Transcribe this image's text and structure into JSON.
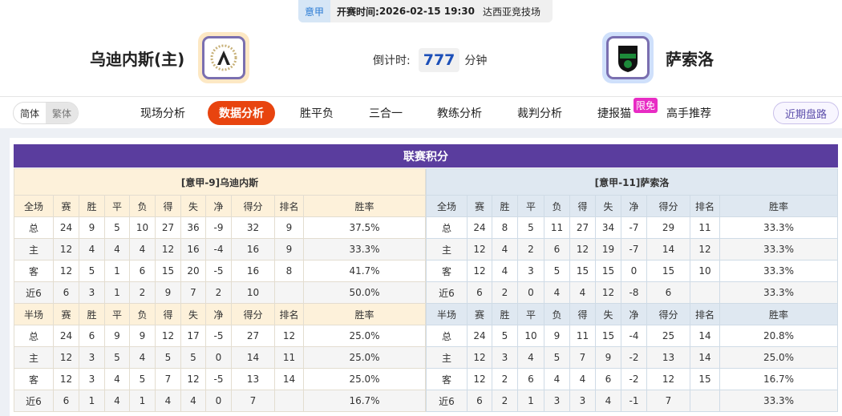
{
  "header": {
    "league": "意甲",
    "kickoff_label": "开赛时间:",
    "kickoff_time": "2026-02-15 19:30",
    "venue": "达西亚竞技场",
    "home_team": "乌迪内斯(主)",
    "away_team": "萨索洛",
    "countdown_label": "倒计时:",
    "countdown_value": "777",
    "countdown_unit": "分钟"
  },
  "lang": {
    "simplified": "简体",
    "traditional": "繁体"
  },
  "nav": {
    "items": [
      "现场分析",
      "数据分析",
      "胜平负",
      "三合一",
      "教练分析",
      "裁判分析",
      "捷报猫",
      "高手推荐"
    ],
    "active": "数据分析",
    "badge": "限免",
    "recent_button": "近期盘路"
  },
  "standings": {
    "title": "联赛积分",
    "columns_full": [
      "全场",
      "赛",
      "胜",
      "平",
      "负",
      "得",
      "失",
      "净",
      "得分",
      "排名",
      "胜率"
    ],
    "columns_half": [
      "半场",
      "赛",
      "胜",
      "平",
      "负",
      "得",
      "失",
      "净",
      "得分",
      "排名",
      "胜率"
    ],
    "home": {
      "title": "[意甲-9]乌迪内斯",
      "full": [
        [
          "总",
          "24",
          "9",
          "5",
          "10",
          "27",
          "36",
          "-9",
          "32",
          "9",
          "37.5%"
        ],
        [
          "主",
          "12",
          "4",
          "4",
          "4",
          "12",
          "16",
          "-4",
          "16",
          "9",
          "33.3%"
        ],
        [
          "客",
          "12",
          "5",
          "1",
          "6",
          "15",
          "20",
          "-5",
          "16",
          "8",
          "41.7%"
        ],
        [
          "近6",
          "6",
          "3",
          "1",
          "2",
          "9",
          "7",
          "2",
          "10",
          "",
          "50.0%"
        ]
      ],
      "half": [
        [
          "总",
          "24",
          "6",
          "9",
          "9",
          "12",
          "17",
          "-5",
          "27",
          "12",
          "25.0%"
        ],
        [
          "主",
          "12",
          "3",
          "5",
          "4",
          "5",
          "5",
          "0",
          "14",
          "11",
          "25.0%"
        ],
        [
          "客",
          "12",
          "3",
          "4",
          "5",
          "7",
          "12",
          "-5",
          "13",
          "14",
          "25.0%"
        ],
        [
          "近6",
          "6",
          "1",
          "4",
          "1",
          "4",
          "4",
          "0",
          "7",
          "",
          "16.7%"
        ]
      ]
    },
    "away": {
      "title": "[意甲-11]萨索洛",
      "full": [
        [
          "总",
          "24",
          "8",
          "5",
          "11",
          "27",
          "34",
          "-7",
          "29",
          "11",
          "33.3%"
        ],
        [
          "主",
          "12",
          "4",
          "2",
          "6",
          "12",
          "19",
          "-7",
          "14",
          "12",
          "33.3%"
        ],
        [
          "客",
          "12",
          "4",
          "3",
          "5",
          "15",
          "15",
          "0",
          "15",
          "10",
          "33.3%"
        ],
        [
          "近6",
          "6",
          "2",
          "0",
          "4",
          "4",
          "12",
          "-8",
          "6",
          "",
          "33.3%"
        ]
      ],
      "half": [
        [
          "总",
          "24",
          "5",
          "10",
          "9",
          "11",
          "15",
          "-4",
          "25",
          "14",
          "20.8%"
        ],
        [
          "主",
          "12",
          "3",
          "4",
          "5",
          "7",
          "9",
          "-2",
          "13",
          "14",
          "25.0%"
        ],
        [
          "客",
          "12",
          "2",
          "6",
          "4",
          "4",
          "6",
          "-2",
          "12",
          "15",
          "16.7%"
        ],
        [
          "近6",
          "6",
          "2",
          "1",
          "3",
          "3",
          "4",
          "-1",
          "7",
          "",
          "33.3%"
        ]
      ]
    }
  }
}
